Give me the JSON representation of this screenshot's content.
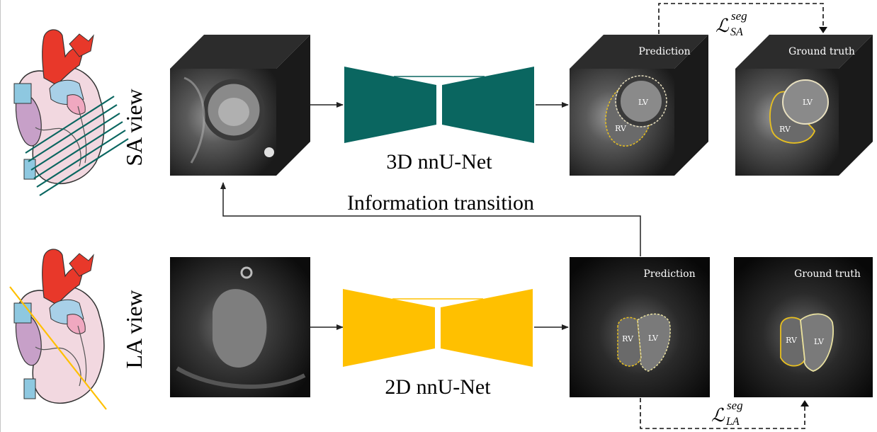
{
  "top": {
    "view_label": "SA view",
    "network_label": "3D nnU-Net",
    "network_color": "#0a6660",
    "prediction_label": "Prediction",
    "ground_truth_label": "Ground truth",
    "lv": "LV",
    "rv": "RV",
    "loss_symbol": "ℒ",
    "loss_sup": "seg",
    "loss_sub": "SA"
  },
  "bottom": {
    "view_label": "LA view",
    "network_label": "2D nnU-Net",
    "network_color": "#ffc000",
    "prediction_label": "Prediction",
    "ground_truth_label": "Ground truth",
    "lv": "LV",
    "rv": "RV",
    "loss_symbol": "ℒ",
    "loss_sup": "seg",
    "loss_sub": "LA"
  },
  "transition_label": "Information transition",
  "colors": {
    "contour": "#e8c020",
    "contour_lv": "#e8e0c0",
    "arrow": "#222222"
  }
}
